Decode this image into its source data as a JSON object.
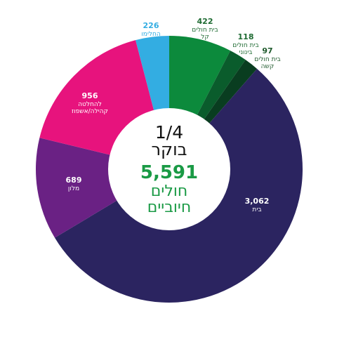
{
  "chart_data": {
    "type": "pie",
    "center": {
      "date": "1/4",
      "period": "בוקר",
      "total": "5,591",
      "total_line1": "חולים",
      "total_line2": "חיוביים",
      "date_color": "#111111",
      "total_color": "#1a9a45"
    },
    "slices": [
      {
        "label_line1": "בית חולים",
        "label_line2": "קל",
        "value": 422,
        "display": "422",
        "color": "#0c8a3c",
        "text_color": "#1f6b33"
      },
      {
        "label_line1": "בית חולים",
        "label_line2": "בינוני",
        "value": 118,
        "display": "118",
        "color": "#0a5c2c",
        "text_color": "#1f6b33"
      },
      {
        "label_line1": "בית חולים",
        "label_line2": "קשה",
        "value": 97,
        "display": "97",
        "color": "#093d20",
        "text_color": "#1f5a2c"
      },
      {
        "label_line1": "בית",
        "label_line2": "",
        "value": 3062,
        "display": "3,062",
        "color": "#2b2460",
        "text_color": "#ffffff"
      },
      {
        "label_line1": "מלון",
        "label_line2": "",
        "value": 689,
        "display": "689",
        "color": "#6a2184",
        "text_color": "#ffffff"
      },
      {
        "label_line1": "להחלטה",
        "label_line2": "קהילה/אשפוז",
        "value": 956,
        "display": "956",
        "color": "#e7137d",
        "text_color": "#ffffff"
      },
      {
        "label_line1": "החלימו",
        "label_line2": "",
        "value": 226,
        "display": "226",
        "color": "#33ade2",
        "text_color": "#33ade2"
      }
    ]
  }
}
